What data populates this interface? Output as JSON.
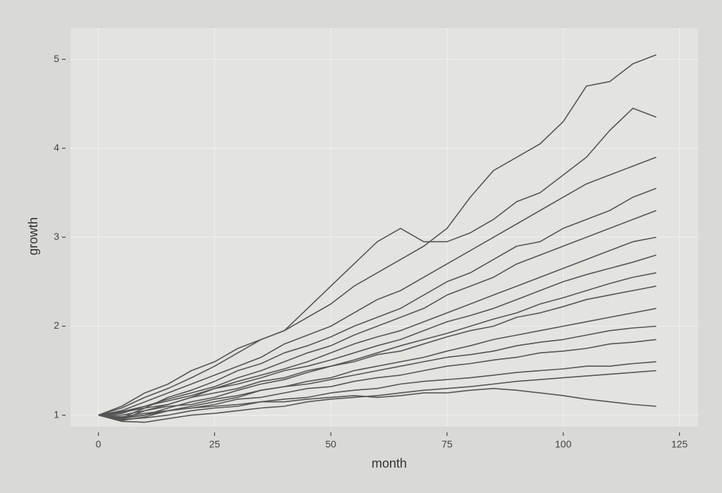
{
  "chart_data": {
    "type": "line",
    "x_label": "month",
    "y_label": "growth",
    "x": [
      0,
      5,
      10,
      15,
      20,
      25,
      30,
      35,
      40,
      45,
      50,
      55,
      60,
      65,
      70,
      75,
      80,
      85,
      90,
      95,
      100,
      105,
      110,
      115,
      120
    ],
    "color": "#555555",
    "grid": true,
    "xlim": [
      -6,
      129
    ],
    "ylim": [
      0.87,
      5.35
    ],
    "xticks": [
      0,
      25,
      50,
      75,
      100,
      125
    ],
    "yticks": [
      1,
      2,
      3,
      4,
      5
    ],
    "series": [
      {
        "values": [
          1,
          1.08,
          1.2,
          1.3,
          1.42,
          1.55,
          1.7,
          1.85,
          1.95,
          2.1,
          2.25,
          2.45,
          2.6,
          2.75,
          2.9,
          3.1,
          3.45,
          3.75,
          3.9,
          4.05,
          4.3,
          4.7,
          4.75,
          4.95,
          5.05
        ]
      },
      {
        "values": [
          1,
          1.1,
          1.25,
          1.35,
          1.5,
          1.6,
          1.75,
          1.85,
          1.95,
          2.2,
          2.45,
          2.7,
          2.95,
          3.1,
          2.95,
          2.95,
          3.05,
          3.2,
          3.4,
          3.5,
          3.7,
          3.9,
          4.2,
          4.45,
          4.35
        ]
      },
      {
        "values": [
          1,
          1.05,
          1.15,
          1.25,
          1.35,
          1.45,
          1.55,
          1.65,
          1.8,
          1.9,
          2.0,
          2.15,
          2.3,
          2.4,
          2.55,
          2.7,
          2.85,
          3.0,
          3.15,
          3.3,
          3.45,
          3.6,
          3.7,
          3.8,
          3.9
        ]
      },
      {
        "values": [
          1,
          0.97,
          1.08,
          1.2,
          1.28,
          1.38,
          1.5,
          1.58,
          1.7,
          1.78,
          1.88,
          2.0,
          2.1,
          2.2,
          2.35,
          2.5,
          2.6,
          2.75,
          2.9,
          2.95,
          3.1,
          3.2,
          3.3,
          3.45,
          3.55
        ]
      },
      {
        "values": [
          1,
          1.02,
          1.1,
          1.18,
          1.25,
          1.32,
          1.42,
          1.5,
          1.6,
          1.7,
          1.78,
          1.9,
          2.0,
          2.1,
          2.2,
          2.35,
          2.45,
          2.55,
          2.7,
          2.8,
          2.9,
          3.0,
          3.1,
          3.2,
          3.3
        ]
      },
      {
        "values": [
          1,
          0.95,
          1.05,
          1.12,
          1.2,
          1.3,
          1.38,
          1.45,
          1.52,
          1.6,
          1.7,
          1.8,
          1.88,
          1.95,
          2.05,
          2.15,
          2.25,
          2.35,
          2.45,
          2.55,
          2.65,
          2.75,
          2.85,
          2.95,
          3.0
        ]
      },
      {
        "values": [
          1,
          1.04,
          1.1,
          1.16,
          1.22,
          1.3,
          1.35,
          1.42,
          1.5,
          1.55,
          1.62,
          1.7,
          1.78,
          1.85,
          1.95,
          2.05,
          2.12,
          2.2,
          2.3,
          2.4,
          2.5,
          2.58,
          2.65,
          2.72,
          2.8
        ]
      },
      {
        "values": [
          1,
          0.96,
          1.0,
          1.08,
          1.15,
          1.2,
          1.28,
          1.35,
          1.4,
          1.48,
          1.55,
          1.62,
          1.7,
          1.78,
          1.85,
          1.92,
          2.0,
          2.08,
          2.15,
          2.25,
          2.32,
          2.4,
          2.48,
          2.55,
          2.6
        ]
      },
      {
        "values": [
          1,
          1.03,
          1.08,
          1.12,
          1.2,
          1.25,
          1.3,
          1.38,
          1.42,
          1.5,
          1.55,
          1.6,
          1.68,
          1.72,
          1.8,
          1.88,
          1.95,
          2.0,
          2.1,
          2.15,
          2.22,
          2.3,
          2.35,
          2.4,
          2.45
        ]
      },
      {
        "values": [
          1,
          0.94,
          0.98,
          1.05,
          1.1,
          1.15,
          1.2,
          1.28,
          1.32,
          1.38,
          1.42,
          1.5,
          1.55,
          1.6,
          1.65,
          1.72,
          1.78,
          1.85,
          1.9,
          1.95,
          2.0,
          2.05,
          2.1,
          2.15,
          2.2
        ]
      },
      {
        "values": [
          1,
          1.0,
          1.05,
          1.1,
          1.12,
          1.18,
          1.22,
          1.28,
          1.32,
          1.35,
          1.4,
          1.45,
          1.5,
          1.55,
          1.6,
          1.65,
          1.68,
          1.72,
          1.78,
          1.82,
          1.85,
          1.9,
          1.95,
          1.98,
          2.0
        ]
      },
      {
        "values": [
          1,
          0.97,
          1.0,
          1.05,
          1.08,
          1.12,
          1.18,
          1.2,
          1.25,
          1.3,
          1.32,
          1.38,
          1.42,
          1.45,
          1.5,
          1.55,
          1.58,
          1.62,
          1.65,
          1.7,
          1.72,
          1.75,
          1.8,
          1.82,
          1.85
        ]
      },
      {
        "values": [
          1,
          0.95,
          0.97,
          1.0,
          1.05,
          1.08,
          1.1,
          1.15,
          1.18,
          1.2,
          1.25,
          1.28,
          1.3,
          1.35,
          1.38,
          1.4,
          1.42,
          1.45,
          1.48,
          1.5,
          1.52,
          1.55,
          1.55,
          1.58,
          1.6
        ]
      },
      {
        "values": [
          1,
          0.93,
          0.92,
          0.96,
          1.0,
          1.02,
          1.05,
          1.08,
          1.1,
          1.15,
          1.18,
          1.2,
          1.22,
          1.25,
          1.28,
          1.3,
          1.32,
          1.35,
          1.38,
          1.4,
          1.42,
          1.44,
          1.46,
          1.48,
          1.5
        ]
      },
      {
        "values": [
          1,
          0.98,
          1.02,
          1.05,
          1.08,
          1.1,
          1.12,
          1.15,
          1.15,
          1.18,
          1.2,
          1.22,
          1.2,
          1.22,
          1.25,
          1.25,
          1.28,
          1.3,
          1.28,
          1.25,
          1.22,
          1.18,
          1.15,
          1.12,
          1.1
        ]
      }
    ]
  }
}
